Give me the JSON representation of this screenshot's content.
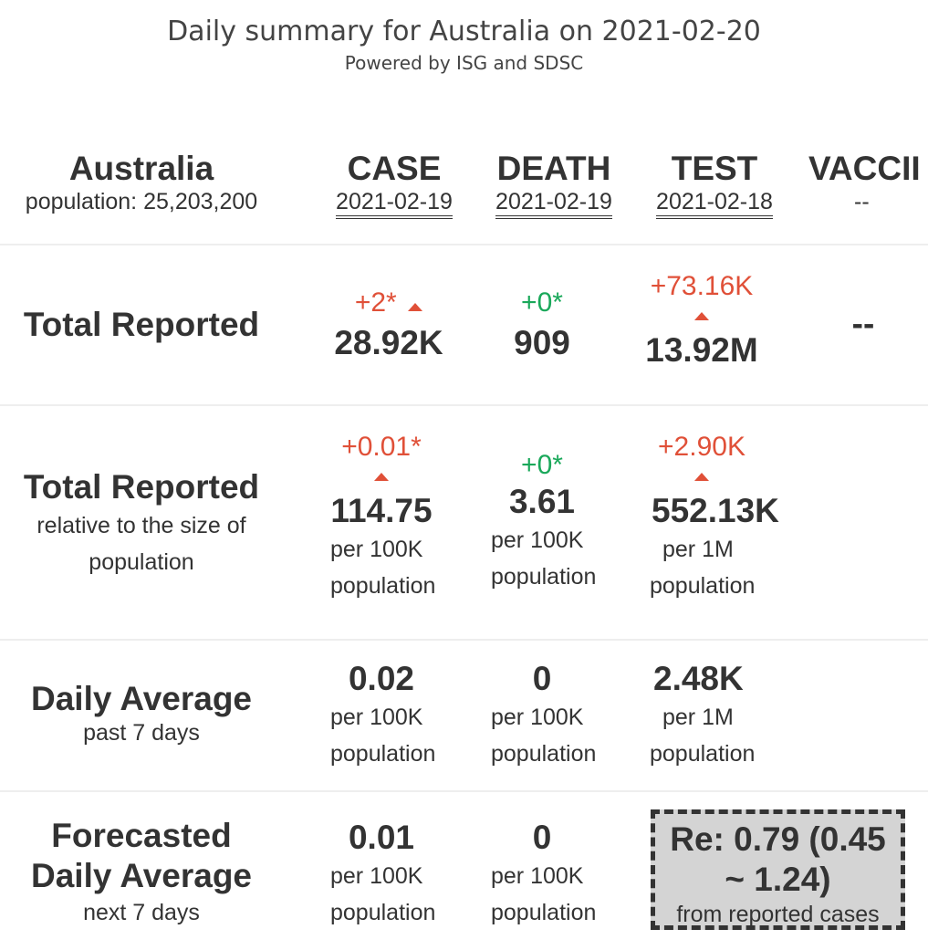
{
  "header": {
    "title": "Daily summary for Australia on 2021-02-20",
    "subtitle": "Powered by ISG and SDSC"
  },
  "region": {
    "name": "Australia",
    "population": "population: 25,203,200"
  },
  "columns": {
    "case": {
      "label": "CASE",
      "date": "2021-02-19"
    },
    "death": {
      "label": "DEATH",
      "date": "2021-02-19"
    },
    "test": {
      "label": "TEST",
      "date": "2021-02-18"
    },
    "vaccine": {
      "label": "VACCII",
      "date": "--"
    }
  },
  "rows": {
    "total": {
      "label": "Total Reported",
      "case": {
        "delta": "+2*",
        "value": "28.92K"
      },
      "death": {
        "delta": "+0*",
        "value": "909"
      },
      "test": {
        "delta": "+73.16K",
        "value": "13.92M"
      },
      "vaccine": {
        "value": "--"
      }
    },
    "relative": {
      "label": "Total Reported",
      "sub_line1": "relative to the size of",
      "sub_line2": "population",
      "case": {
        "delta": "+0.01*",
        "value": "114.75",
        "unit1": "per 100K",
        "unit2": "population"
      },
      "death": {
        "delta": "+0*",
        "value": "3.61",
        "unit1": "per 100K",
        "unit2": "population"
      },
      "test": {
        "delta": "+2.90K",
        "value": "552.13K",
        "unit1": "per 1M",
        "unit2": "population"
      }
    },
    "daily": {
      "label": "Daily Average",
      "sub": "past 7 days",
      "case": {
        "value": "0.02",
        "unit1": "per 100K",
        "unit2": "population"
      },
      "death": {
        "value": "0",
        "unit1": "per 100K",
        "unit2": "population"
      },
      "test": {
        "value": "2.48K",
        "unit1": "per 1M",
        "unit2": "population"
      }
    },
    "forecast": {
      "label_line1": "Forecasted",
      "label_line2": "Daily Average",
      "sub": "next 7 days",
      "case": {
        "value": "0.01",
        "unit1": "per 100K",
        "unit2": "population"
      },
      "death": {
        "value": "0",
        "unit1": "per 100K",
        "unit2": "population"
      },
      "re": {
        "value": "Re: 0.79 (0.45 ~ 1.24)",
        "source": "from reported cases"
      }
    }
  },
  "colors": {
    "increase": "#e05038",
    "no_change": "#1aa85a",
    "re_box_bg": "#d4d4d4"
  }
}
